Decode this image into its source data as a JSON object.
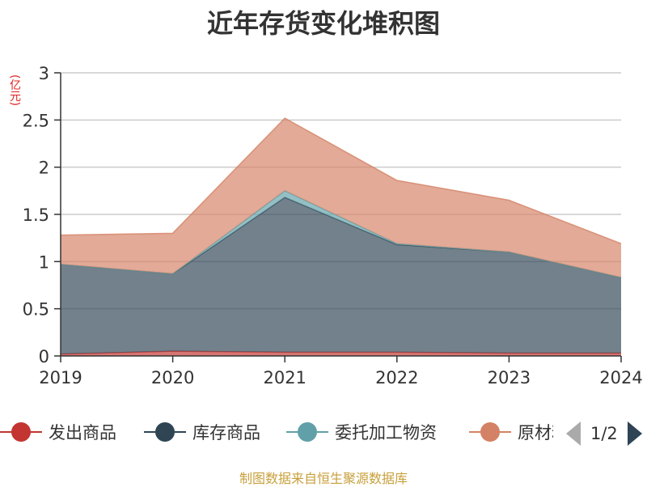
{
  "chart_data": {
    "type": "area",
    "stacked": true,
    "title": "近年存货变化堆积图",
    "y_unit": "(亿元)",
    "categories": [
      "2019",
      "2020",
      "2021",
      "2022",
      "2023",
      "2024"
    ],
    "ylim": [
      0,
      3
    ],
    "yticks": [
      "0",
      "0.5",
      "1",
      "1.5",
      "2",
      "2.5",
      "3"
    ],
    "grid": true,
    "legend_position": "bottom",
    "series": [
      {
        "name": "发出商品",
        "color": "#c23531",
        "values": [
          0.02,
          0.05,
          0.04,
          0.04,
          0.03,
          0.03
        ]
      },
      {
        "name": "库存商品",
        "color": "#2f4554",
        "values": [
          0.95,
          0.82,
          1.64,
          1.14,
          1.07,
          0.8
        ]
      },
      {
        "name": "委托加工物资",
        "color": "#61a0a8",
        "values": [
          0.0,
          0.0,
          0.07,
          0.01,
          0.0,
          0.0
        ]
      },
      {
        "name": "原材料",
        "color": "#d48265",
        "values": [
          0.31,
          0.43,
          0.77,
          0.67,
          0.55,
          0.36
        ]
      }
    ]
  },
  "legend": {
    "page": "1/2"
  },
  "source": "制图数据来自恒生聚源数据库"
}
